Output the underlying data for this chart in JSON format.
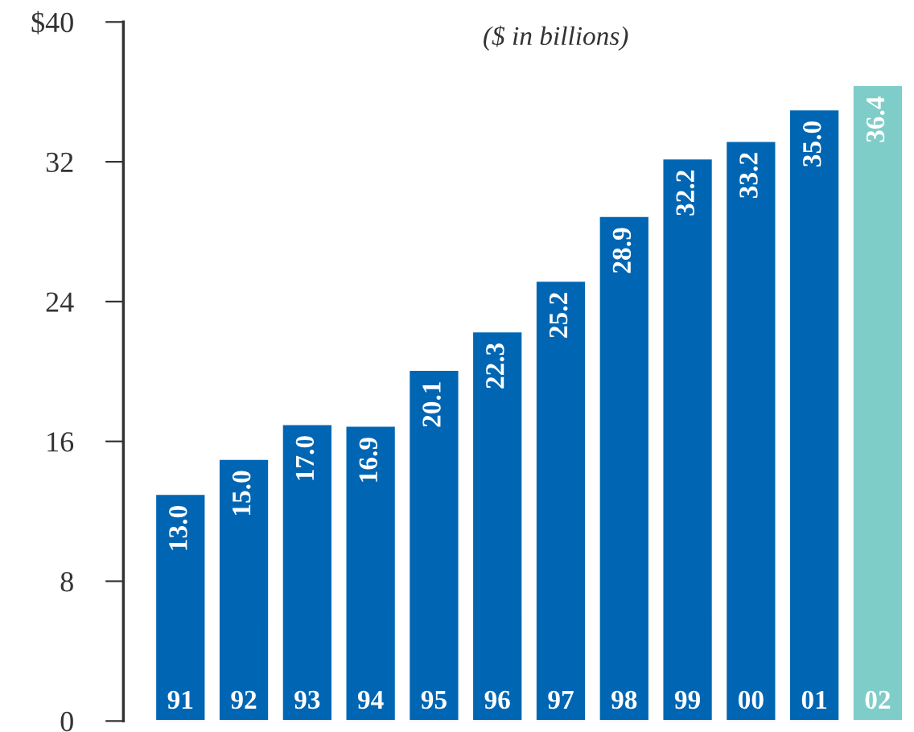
{
  "chart_data": {
    "type": "bar",
    "title": "($ in billions)",
    "categories": [
      "91",
      "92",
      "93",
      "94",
      "95",
      "96",
      "97",
      "98",
      "99",
      "00",
      "01",
      "02"
    ],
    "values": [
      13.0,
      15.0,
      17.0,
      16.9,
      20.1,
      22.3,
      25.2,
      28.9,
      32.2,
      33.2,
      35.0,
      36.4
    ],
    "value_labels": [
      "13.0",
      "15.0",
      "17.0",
      "16.9",
      "20.1",
      "22.3",
      "25.2",
      "28.9",
      "32.2",
      "33.2",
      "35.0",
      "36.4"
    ],
    "colors": [
      "#0066b3",
      "#0066b3",
      "#0066b3",
      "#0066b3",
      "#0066b3",
      "#0066b3",
      "#0066b3",
      "#0066b3",
      "#0066b3",
      "#0066b3",
      "#0066b3",
      "#7ecdc8"
    ],
    "ylim": [
      0,
      40
    ],
    "yticks": [
      0,
      8,
      16,
      24,
      32,
      {
        "value": 40,
        "label": "$40"
      }
    ],
    "grid": false,
    "legend": false
  }
}
